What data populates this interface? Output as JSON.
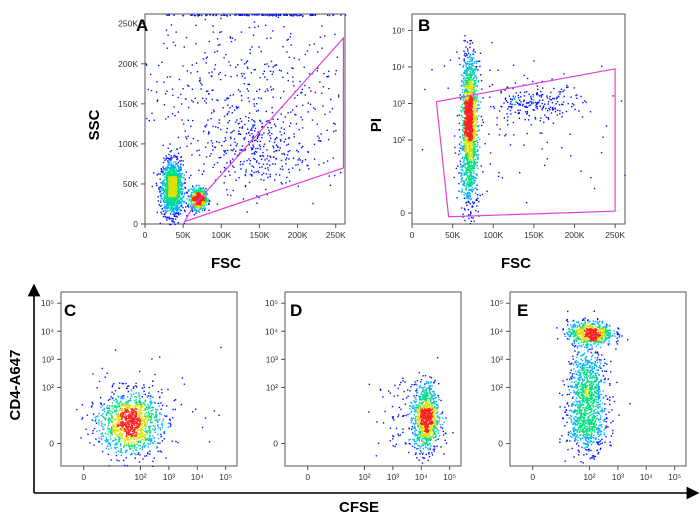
{
  "chart_data": [
    {
      "type": "scatter",
      "panel": "A",
      "xlabel": "FSC",
      "ylabel": "SSC",
      "xlim": [
        0,
        262144
      ],
      "ylim": [
        0,
        262144
      ],
      "x_ticks": [
        {
          "v": 0,
          "label": "0"
        },
        {
          "v": 50000,
          "label": "50K"
        },
        {
          "v": 100000,
          "label": "100K"
        },
        {
          "v": 150000,
          "label": "150K"
        },
        {
          "v": 200000,
          "label": "200K"
        },
        {
          "v": 250000,
          "label": "250K"
        }
      ],
      "y_ticks": [
        {
          "v": 0,
          "label": "0"
        },
        {
          "v": 50000,
          "label": "50K"
        },
        {
          "v": 100000,
          "label": "100K"
        },
        {
          "v": 150000,
          "label": "150K"
        },
        {
          "v": 200000,
          "label": "200K"
        },
        {
          "v": 250000,
          "label": "250K"
        }
      ],
      "populations": [
        {
          "name": "main-cluster",
          "cx": 35000,
          "cy": 45000,
          "sx": 7000,
          "sy": 17000,
          "n": 1300
        },
        {
          "name": "gated-cluster",
          "cx": 69000,
          "cy": 32000,
          "sx": 5000,
          "sy": 6500,
          "n": 700
        },
        {
          "name": "large-events",
          "cx": 140000,
          "cy": 90000,
          "sx": 35000,
          "sy": 25000,
          "n": 260
        },
        {
          "name": "scatter-events",
          "cx": 130000,
          "cy": 160000,
          "sx": 70000,
          "sy": 60000,
          "n": 520
        },
        {
          "name": "saturation-events",
          "cx": 150000,
          "cy": 262000,
          "sx": 60000,
          "sy": 600,
          "n": 240
        }
      ],
      "gate": [
        [
          52000,
          3000
        ],
        [
          260000,
          70000
        ],
        [
          260000,
          232000
        ],
        [
          63000,
          22000
        ]
      ]
    },
    {
      "type": "scatter",
      "panel": "B",
      "xlabel": "FSC",
      "ylabel": "PI",
      "xlim": [
        0,
        262144
      ],
      "ylim": [
        -0.3,
        5.45
      ],
      "x_ticks": [
        {
          "v": 0,
          "label": "0"
        },
        {
          "v": 50000,
          "label": "50K"
        },
        {
          "v": 100000,
          "label": "100K"
        },
        {
          "v": 150000,
          "label": "150K"
        },
        {
          "v": 200000,
          "label": "200K"
        },
        {
          "v": 250000,
          "label": "250K"
        }
      ],
      "y_ticks": [
        {
          "v": 0,
          "label": "0"
        },
        {
          "v": 2,
          "label": "10²"
        },
        {
          "v": 3,
          "label": "10³"
        },
        {
          "v": 4,
          "label": "10⁴"
        },
        {
          "v": 5,
          "label": "10⁵"
        }
      ],
      "populations": [
        {
          "name": "live-column",
          "cx": 70000,
          "cy": 2.6,
          "sx": 4500,
          "sy": 0.75,
          "n": 1300
        },
        {
          "name": "column-tail",
          "cx": 70000,
          "cy": 1.2,
          "sx": 6000,
          "sy": 0.7,
          "n": 350
        },
        {
          "name": "dead-cells",
          "cx": 150000,
          "cy": 3.0,
          "sx": 30000,
          "sy": 0.25,
          "n": 220
        },
        {
          "name": "column-top",
          "cx": 70000,
          "cy": 3.9,
          "sx": 7000,
          "sy": 0.35,
          "n": 80
        },
        {
          "name": "sparse-events",
          "cx": 130000,
          "cy": 2.5,
          "sx": 70000,
          "sy": 1.0,
          "n": 90
        }
      ],
      "gate": [
        [
          30000,
          3.05
        ],
        [
          250000,
          3.95
        ],
        [
          250000,
          0.05
        ],
        [
          45000,
          -0.1
        ]
      ]
    },
    {
      "type": "scatter",
      "panel": "C",
      "xlim": [
        -0.8,
        5.4
      ],
      "ylim": [
        -0.8,
        5.4
      ],
      "x_ticks": [
        {
          "v": 0,
          "label": "0"
        },
        {
          "v": 2,
          "label": "10²"
        },
        {
          "v": 3,
          "label": "10³"
        },
        {
          "v": 4,
          "label": "10⁴"
        },
        {
          "v": 5,
          "label": "10⁵"
        }
      ],
      "y_ticks": [
        {
          "v": 0,
          "label": "0"
        },
        {
          "v": 2,
          "label": "10²"
        },
        {
          "v": 3,
          "label": "10³"
        },
        {
          "v": 4,
          "label": "10⁴"
        },
        {
          "v": 5,
          "label": "10⁵"
        }
      ],
      "populations": [
        {
          "name": "undivided",
          "cx": 1.6,
          "cy": 0.75,
          "sx": 0.55,
          "sy": 0.55,
          "n": 1200
        },
        {
          "name": "sparse",
          "cx": 2.5,
          "cy": 1.3,
          "sx": 1.2,
          "sy": 0.9,
          "n": 60
        }
      ]
    },
    {
      "type": "scatter",
      "panel": "D",
      "xlim": [
        -0.8,
        5.4
      ],
      "ylim": [
        -0.8,
        5.4
      ],
      "x_ticks": [
        {
          "v": 0,
          "label": "0"
        },
        {
          "v": 2,
          "label": "10²"
        },
        {
          "v": 3,
          "label": "10³"
        },
        {
          "v": 4,
          "label": "10⁴"
        },
        {
          "v": 5,
          "label": "10⁵"
        }
      ],
      "y_ticks": [
        {
          "v": 0,
          "label": "0"
        },
        {
          "v": 2,
          "label": "10²"
        },
        {
          "v": 3,
          "label": "10³"
        },
        {
          "v": 4,
          "label": "10⁴"
        },
        {
          "v": 5,
          "label": "10⁵"
        }
      ],
      "populations": [
        {
          "name": "cfse-high",
          "cx": 4.15,
          "cy": 0.95,
          "sx": 0.22,
          "sy": 0.6,
          "n": 900
        },
        {
          "name": "sparse",
          "cx": 3.6,
          "cy": 0.9,
          "sx": 0.6,
          "sy": 0.8,
          "n": 120
        }
      ]
    },
    {
      "type": "scatter",
      "panel": "E",
      "xlim": [
        -0.8,
        5.4
      ],
      "ylim": [
        -0.8,
        5.4
      ],
      "x_ticks": [
        {
          "v": 0,
          "label": "0"
        },
        {
          "v": 2,
          "label": "10²"
        },
        {
          "v": 3,
          "label": "10³"
        },
        {
          "v": 4,
          "label": "10⁴"
        },
        {
          "v": 5,
          "label": "10⁵"
        }
      ],
      "y_ticks": [
        {
          "v": 0,
          "label": "0"
        },
        {
          "v": 2,
          "label": "10²"
        },
        {
          "v": 3,
          "label": "10³"
        },
        {
          "v": 4,
          "label": "10⁴"
        },
        {
          "v": 5,
          "label": "10⁵"
        }
      ],
      "populations": [
        {
          "name": "cd4-positive",
          "cx": 2.0,
          "cy": 3.95,
          "sx": 0.4,
          "sy": 0.22,
          "n": 650
        },
        {
          "name": "cd4-negative-upper",
          "cx": 1.9,
          "cy": 1.9,
          "sx": 0.35,
          "sy": 0.5,
          "n": 550
        },
        {
          "name": "cd4-negative-lower",
          "cx": 1.9,
          "cy": 0.6,
          "sx": 0.35,
          "sy": 0.45,
          "n": 500
        },
        {
          "name": "bridge",
          "cx": 1.9,
          "cy": 2.9,
          "sx": 0.3,
          "sy": 0.35,
          "n": 120
        }
      ]
    }
  ],
  "labels": {
    "panel_a": "A",
    "panel_b": "B",
    "panel_c": "C",
    "panel_d": "D",
    "panel_e": "E",
    "xlabel_a": "FSC",
    "ylabel_a": "SSC",
    "xlabel_b": "FSC",
    "ylabel_b": "PI",
    "shared_xlabel": "CFSE",
    "shared_ylabel": "CD4-A647"
  },
  "colors": {
    "gate": "#e040d8",
    "axis": "#000000",
    "density_scale": [
      "#0010ff",
      "#00b0ff",
      "#00e080",
      "#e0e000",
      "#ff2020"
    ]
  }
}
